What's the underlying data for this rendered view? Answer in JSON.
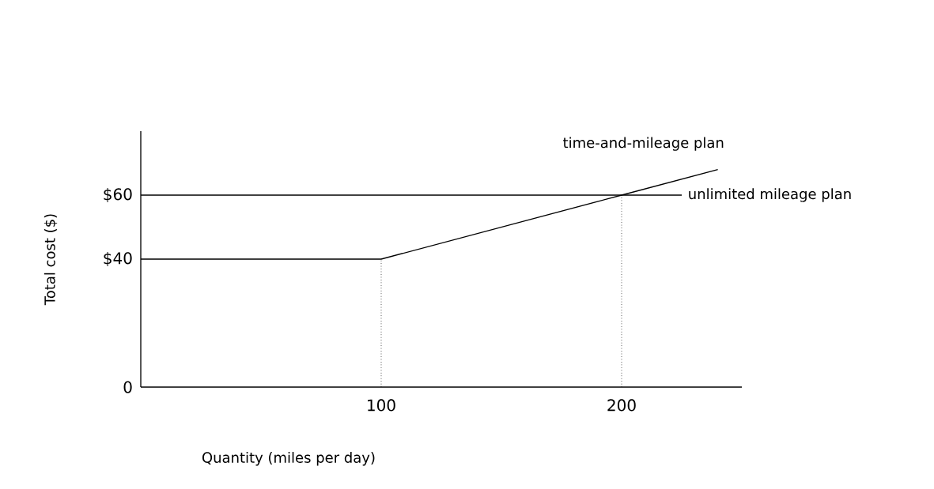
{
  "chart_data": {
    "type": "line",
    "xlabel": "Quantity (miles per day)",
    "ylabel": "Total cost ($)",
    "xlim": [
      0,
      250
    ],
    "ylim": [
      0,
      80
    ],
    "xticks": [
      100,
      200
    ],
    "yticks": [
      0,
      {
        "value": 40,
        "label": "$40"
      },
      {
        "value": 60,
        "label": "$60"
      }
    ],
    "series": [
      {
        "name": "time-and-mileage plan",
        "color": "#000000",
        "x": [
          0,
          100,
          200,
          240
        ],
        "values": [
          40,
          40,
          60,
          68
        ]
      },
      {
        "name": "unlimited mileage plan",
        "color": "#000000",
        "x": [
          0,
          225
        ],
        "values": [
          60,
          60
        ]
      },
      {
        "color": "#000000",
        "line_style": "dotted",
        "x": [
          100,
          100
        ],
        "values": [
          0,
          40
        ]
      },
      {
        "color": "#000000",
        "line_style": "dotted",
        "x": [
          200,
          200
        ],
        "values": [
          0,
          60
        ]
      }
    ]
  }
}
